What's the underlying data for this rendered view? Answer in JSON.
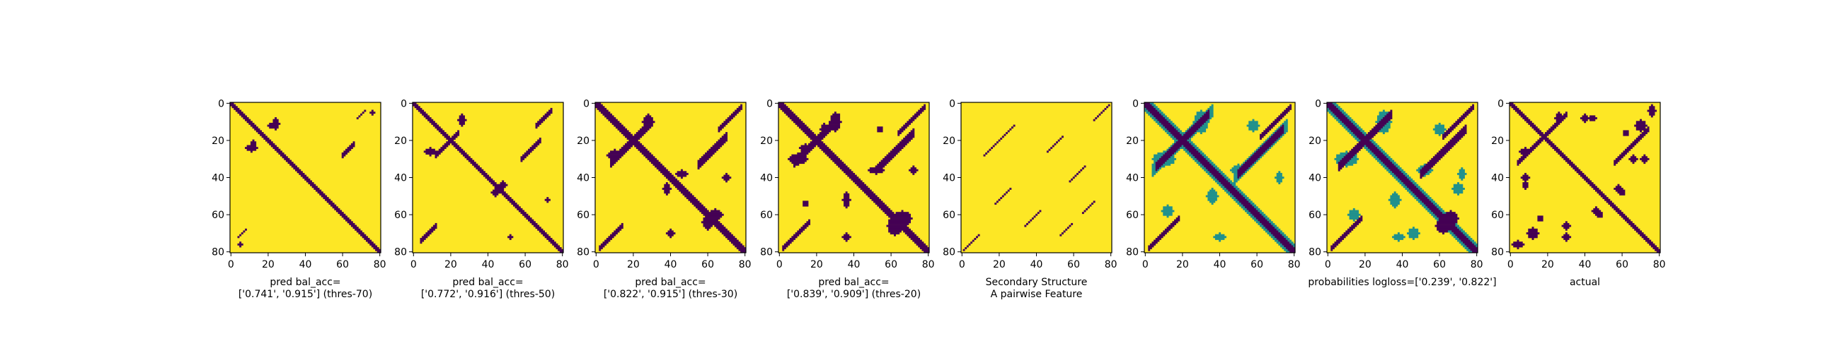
{
  "colors": {
    "low": "#440154",
    "mid": "#21918c",
    "high": "#fde725",
    "background": "#ffffff",
    "axis": "#000000"
  },
  "chart_data": [
    {
      "type": "heatmap",
      "colormap": "viridis",
      "size": 81,
      "line": [
        10,
        14
      ],
      "xticks": [
        0,
        20,
        40,
        60,
        80
      ],
      "yticks": [
        0,
        20,
        40,
        60,
        80
      ],
      "xlim": [
        0,
        81
      ],
      "ylim": [
        81,
        0
      ],
      "xlabel_lines": [
        "pred bal_acc=",
        "['0.741', '0.915'] (thres-70)"
      ],
      "low_regions": [
        {
          "kind": "diag",
          "offset": 0,
          "halfwidth": 1.2,
          "from": 0,
          "to": 80
        },
        {
          "kind": "anti",
          "sum": 88,
          "halfwidth": 1.0,
          "from": 60,
          "to": 66
        },
        {
          "kind": "blob",
          "cx": 24,
          "cy": 11,
          "rx": 2,
          "ry": 3
        },
        {
          "kind": "blob",
          "cx": 12,
          "cy": 22,
          "rx": 1.5,
          "ry": 2
        },
        {
          "kind": "anti",
          "sum": 76,
          "halfwidth": 0.8,
          "from": 68,
          "to": 72
        },
        {
          "kind": "anti",
          "sum": 76,
          "halfwidth": 0.8,
          "from": 4,
          "to": 8
        },
        {
          "kind": "blob",
          "cx": 5,
          "cy": 76,
          "rx": 1,
          "ry": 1
        }
      ]
    },
    {
      "type": "heatmap",
      "colormap": "viridis",
      "size": 81,
      "line": [
        10,
        14
      ],
      "xticks": [
        0,
        20,
        40,
        60,
        80
      ],
      "yticks": [
        0,
        20,
        40,
        60,
        80
      ],
      "xlim": [
        0,
        81
      ],
      "ylim": [
        81,
        0
      ],
      "xlabel_lines": [
        "pred bal_acc=",
        "['0.772', '0.916'] (thres-50)"
      ],
      "low_regions": [
        {
          "kind": "diag",
          "offset": 0,
          "halfwidth": 1.5,
          "from": 0,
          "to": 80
        },
        {
          "kind": "anti",
          "sum": 88,
          "halfwidth": 1.2,
          "from": 58,
          "to": 68
        },
        {
          "kind": "blob",
          "cx": 26,
          "cy": 9,
          "rx": 2,
          "ry": 3
        },
        {
          "kind": "anti",
          "sum": 40,
          "halfwidth": 1.0,
          "from": 12,
          "to": 24
        },
        {
          "kind": "anti",
          "sum": 78,
          "halfwidth": 1.0,
          "from": 66,
          "to": 74
        },
        {
          "kind": "anti",
          "sum": 78,
          "halfwidth": 1.0,
          "from": 4,
          "to": 12
        },
        {
          "kind": "blob",
          "cx": 44,
          "cy": 48,
          "rx": 2,
          "ry": 2
        },
        {
          "kind": "blob",
          "cx": 52,
          "cy": 72,
          "rx": 1,
          "ry": 1
        }
      ]
    },
    {
      "type": "heatmap",
      "colormap": "viridis",
      "size": 81,
      "line": [
        10,
        14
      ],
      "xticks": [
        0,
        20,
        40,
        60,
        80
      ],
      "yticks": [
        0,
        20,
        40,
        60,
        80
      ],
      "xlim": [
        0,
        81
      ],
      "ylim": [
        81,
        0
      ],
      "xlabel_lines": [
        "pred bal_acc=",
        "['0.822', '0.915'] (thres-30)"
      ],
      "low_regions": [
        {
          "kind": "diag",
          "offset": 0,
          "halfwidth": 2.2,
          "from": 0,
          "to": 80
        },
        {
          "kind": "anti",
          "sum": 40,
          "halfwidth": 2.0,
          "from": 8,
          "to": 30
        },
        {
          "kind": "anti",
          "sum": 88,
          "halfwidth": 2.0,
          "from": 55,
          "to": 70
        },
        {
          "kind": "anti",
          "sum": 80,
          "halfwidth": 1.5,
          "from": 66,
          "to": 78
        },
        {
          "kind": "anti",
          "sum": 80,
          "halfwidth": 1.5,
          "from": 2,
          "to": 14
        },
        {
          "kind": "blob",
          "cx": 28,
          "cy": 10,
          "rx": 3,
          "ry": 4
        },
        {
          "kind": "blob",
          "cx": 46,
          "cy": 38,
          "rx": 3,
          "ry": 2
        },
        {
          "kind": "blob",
          "cx": 64,
          "cy": 60,
          "rx": 4,
          "ry": 3
        },
        {
          "kind": "blob",
          "cx": 40,
          "cy": 70,
          "rx": 2,
          "ry": 2
        },
        {
          "kind": "blob",
          "cx": 8,
          "cy": 28,
          "rx": 2,
          "ry": 2
        }
      ]
    },
    {
      "type": "heatmap",
      "colormap": "viridis",
      "size": 81,
      "line": [
        10,
        14
      ],
      "xticks": [
        0,
        20,
        40,
        60,
        80
      ],
      "yticks": [
        0,
        20,
        40,
        60,
        80
      ],
      "xlim": [
        0,
        81
      ],
      "ylim": [
        81,
        0
      ],
      "xlabel_lines": [
        "pred bal_acc=",
        "['0.839', '0.909'] (thres-20)"
      ],
      "low_regions": [
        {
          "kind": "diag",
          "offset": 0,
          "halfwidth": 2.6,
          "from": 0,
          "to": 80
        },
        {
          "kind": "anti",
          "sum": 40,
          "halfwidth": 2.2,
          "from": 8,
          "to": 32
        },
        {
          "kind": "anti",
          "sum": 88,
          "halfwidth": 2.2,
          "from": 52,
          "to": 72
        },
        {
          "kind": "anti",
          "sum": 80,
          "halfwidth": 1.8,
          "from": 64,
          "to": 78
        },
        {
          "kind": "anti",
          "sum": 80,
          "halfwidth": 1.8,
          "from": 2,
          "to": 16
        },
        {
          "kind": "blob",
          "cx": 30,
          "cy": 10,
          "rx": 3,
          "ry": 5
        },
        {
          "kind": "blob",
          "cx": 52,
          "cy": 36,
          "rx": 4,
          "ry": 2
        },
        {
          "kind": "blob",
          "cx": 66,
          "cy": 62,
          "rx": 5,
          "ry": 4
        },
        {
          "kind": "blob",
          "cx": 36,
          "cy": 72,
          "rx": 2,
          "ry": 2
        },
        {
          "kind": "blob",
          "cx": 14,
          "cy": 24,
          "rx": 3,
          "ry": 2
        },
        {
          "kind": "blob",
          "cx": 54,
          "cy": 14,
          "rx": 1.5,
          "ry": 1.5
        }
      ]
    },
    {
      "type": "heatmap",
      "colormap": "viridis",
      "size": 81,
      "line": [
        10,
        14
      ],
      "xticks": [
        0,
        20,
        40,
        60,
        80
      ],
      "yticks": [
        0,
        20,
        40,
        60,
        80
      ],
      "xlim": [
        0,
        81
      ],
      "ylim": [
        81,
        0
      ],
      "xlabel_lines": [
        "Secondary Structure",
        "A pairwise Feature"
      ],
      "low_regions": [
        {
          "kind": "anti",
          "sum": 80,
          "halfwidth": 0.35,
          "from": 1,
          "to": 9
        },
        {
          "kind": "anti",
          "sum": 80,
          "halfwidth": 0.35,
          "from": 71,
          "to": 79
        },
        {
          "kind": "anti",
          "sum": 40,
          "halfwidth": 0.35,
          "from": 12,
          "to": 20
        },
        {
          "kind": "anti",
          "sum": 40,
          "halfwidth": 0.35,
          "from": 20,
          "to": 28
        },
        {
          "kind": "anti",
          "sum": 72,
          "halfwidth": 0.35,
          "from": 46,
          "to": 54
        },
        {
          "kind": "anti",
          "sum": 72,
          "halfwidth": 0.35,
          "from": 18,
          "to": 26
        },
        {
          "kind": "anti",
          "sum": 100,
          "halfwidth": 0.35,
          "from": 34,
          "to": 42
        },
        {
          "kind": "anti",
          "sum": 100,
          "halfwidth": 0.35,
          "from": 58,
          "to": 66
        },
        {
          "kind": "anti",
          "sum": 124,
          "halfwidth": 0.35,
          "from": 53,
          "to": 59
        },
        {
          "kind": "anti",
          "sum": 124,
          "halfwidth": 0.35,
          "from": 65,
          "to": 71
        }
      ]
    },
    {
      "type": "heatmap",
      "colormap": "viridis",
      "size": 81,
      "line": [
        10,
        14
      ],
      "xticks": [
        0,
        20,
        40,
        60,
        80
      ],
      "yticks": [
        0,
        20,
        40,
        60,
        80
      ],
      "xlim": [
        0,
        81
      ],
      "ylim": [
        81,
        0
      ],
      "xlabel_lines": [],
      "low_regions": [
        {
          "kind": "diag",
          "offset": 0,
          "halfwidth": 2.4,
          "from": 0,
          "to": 80
        },
        {
          "kind": "anti",
          "sum": 40,
          "halfwidth": 2.0,
          "from": 6,
          "to": 34
        },
        {
          "kind": "anti",
          "sum": 88,
          "halfwidth": 2.0,
          "from": 50,
          "to": 74
        },
        {
          "kind": "anti",
          "sum": 80,
          "halfwidth": 1.6,
          "from": 62,
          "to": 78
        },
        {
          "kind": "anti",
          "sum": 80,
          "halfwidth": 1.6,
          "from": 2,
          "to": 18
        }
      ],
      "mid_regions": [
        {
          "kind": "diag",
          "offset": 0,
          "halfwidth": 4.0,
          "from": 0,
          "to": 80
        },
        {
          "kind": "anti",
          "sum": 40,
          "halfwidth": 3.5,
          "from": 4,
          "to": 36
        },
        {
          "kind": "anti",
          "sum": 88,
          "halfwidth": 3.5,
          "from": 48,
          "to": 76
        },
        {
          "kind": "blob",
          "cx": 30,
          "cy": 10,
          "rx": 4,
          "ry": 6
        },
        {
          "kind": "blob",
          "cx": 50,
          "cy": 36,
          "rx": 4,
          "ry": 3
        },
        {
          "kind": "blob",
          "cx": 12,
          "cy": 58,
          "rx": 3,
          "ry": 3
        },
        {
          "kind": "blob",
          "cx": 40,
          "cy": 72,
          "rx": 3,
          "ry": 2
        }
      ]
    },
    {
      "type": "heatmap",
      "colormap": "viridis",
      "size": 81,
      "line": [
        10,
        14
      ],
      "xticks": [
        0,
        20,
        40,
        60,
        80
      ],
      "yticks": [
        0,
        20,
        40,
        60,
        80
      ],
      "xlim": [
        0,
        81
      ],
      "ylim": [
        81,
        0
      ],
      "xlabel_lines": [
        "probabilities logloss=['0.239', '0.822']"
      ],
      "low_regions": [
        {
          "kind": "diag",
          "offset": 0,
          "halfwidth": 2.6,
          "from": 0,
          "to": 80
        },
        {
          "kind": "anti",
          "sum": 40,
          "halfwidth": 2.2,
          "from": 6,
          "to": 34
        },
        {
          "kind": "anti",
          "sum": 88,
          "halfwidth": 2.2,
          "from": 50,
          "to": 74
        },
        {
          "kind": "anti",
          "sum": 80,
          "halfwidth": 1.8,
          "from": 62,
          "to": 78
        },
        {
          "kind": "anti",
          "sum": 80,
          "halfwidth": 1.8,
          "from": 2,
          "to": 18
        },
        {
          "kind": "blob",
          "cx": 66,
          "cy": 62,
          "rx": 4,
          "ry": 4
        }
      ],
      "mid_regions": [
        {
          "kind": "diag",
          "offset": 0,
          "halfwidth": 4.2,
          "from": 0,
          "to": 80
        },
        {
          "kind": "blob",
          "cx": 30,
          "cy": 10,
          "rx": 4,
          "ry": 6
        },
        {
          "kind": "blob",
          "cx": 52,
          "cy": 36,
          "rx": 4,
          "ry": 3
        },
        {
          "kind": "blob",
          "cx": 14,
          "cy": 60,
          "rx": 3,
          "ry": 3
        },
        {
          "kind": "blob",
          "cx": 38,
          "cy": 72,
          "rx": 3,
          "ry": 2
        },
        {
          "kind": "blob",
          "cx": 70,
          "cy": 46,
          "rx": 3,
          "ry": 3
        }
      ]
    },
    {
      "type": "heatmap",
      "colormap": "viridis",
      "size": 81,
      "line": [
        10,
        14
      ],
      "xticks": [
        0,
        20,
        40,
        60,
        80
      ],
      "yticks": [
        0,
        20,
        40,
        60,
        80
      ],
      "xlim": [
        0,
        81
      ],
      "ylim": [
        81,
        0
      ],
      "xlabel_lines": [
        "actual"
      ],
      "low_regions": [
        {
          "kind": "diag",
          "offset": 0,
          "halfwidth": 1.4,
          "from": 0,
          "to": 80
        },
        {
          "kind": "anti",
          "sum": 36,
          "halfwidth": 1.4,
          "from": 4,
          "to": 30
        },
        {
          "kind": "anti",
          "sum": 88,
          "halfwidth": 1.4,
          "from": 56,
          "to": 74
        },
        {
          "kind": "blob",
          "cx": 26,
          "cy": 8,
          "rx": 2,
          "ry": 3
        },
        {
          "kind": "blob",
          "cx": 44,
          "cy": 8,
          "rx": 2,
          "ry": 1.5
        },
        {
          "kind": "blob",
          "cx": 62,
          "cy": 16,
          "rx": 1.5,
          "ry": 1.5
        },
        {
          "kind": "blob",
          "cx": 8,
          "cy": 40,
          "rx": 2,
          "ry": 2
        },
        {
          "kind": "blob",
          "cx": 12,
          "cy": 70,
          "rx": 3,
          "ry": 3
        },
        {
          "kind": "blob",
          "cx": 30,
          "cy": 66,
          "rx": 2,
          "ry": 2
        },
        {
          "kind": "blob",
          "cx": 72,
          "cy": 30,
          "rx": 2,
          "ry": 2
        },
        {
          "kind": "blob",
          "cx": 58,
          "cy": 46,
          "rx": 2,
          "ry": 2
        },
        {
          "kind": "blob",
          "cx": 76,
          "cy": 4,
          "rx": 2,
          "ry": 3
        },
        {
          "kind": "blob",
          "cx": 48,
          "cy": 60,
          "rx": 1.5,
          "ry": 1.5
        }
      ]
    }
  ]
}
